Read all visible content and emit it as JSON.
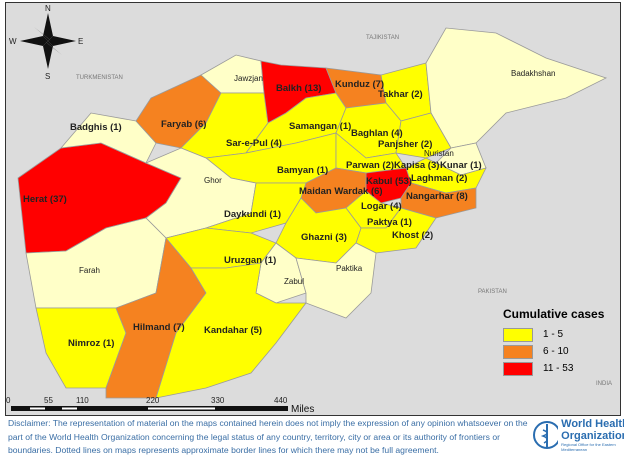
{
  "compass": {
    "n": "N",
    "s": "S",
    "e": "E",
    "w": "W"
  },
  "countries": {
    "tajikistan": "TAJIKISTAN",
    "turkmenistan": "TURKMENISTAN",
    "pakistan": "PAKISTAN",
    "india": "INDIA"
  },
  "legend": {
    "title": "Cumulative cases",
    "items": [
      {
        "label": "1 - 5",
        "color": "#ffff00"
      },
      {
        "label": "6 - 10",
        "color": "#f58220"
      },
      {
        "label": "11 - 53",
        "color": "#ff0000"
      }
    ]
  },
  "colors": {
    "none": "#ffffc8",
    "low": "#ffff00",
    "mid": "#f58220",
    "high": "#ff0000",
    "background": "#dcdcdc"
  },
  "provinces": {
    "herat": "Herat (37)",
    "badghis": "Badghis (1)",
    "faryab": "Faryab (6)",
    "jawzjan": "Jawzjan",
    "balkh": "Balkh (13)",
    "kunduz": "Kunduz (7)",
    "takhar": "Takhar (2)",
    "badakhshan": "Badakhshan",
    "samangan": "Samangan (1)",
    "sarepul": "Sar-e-Pul (4)",
    "baghlan": "Baghlan (4)",
    "panjsher": "Panjsher (2)",
    "nuristan": "Nuristan",
    "bamyan": "Bamyan (1)",
    "parwan": "Parwan (2)",
    "kapisa": "Kapisa (3)",
    "kunar": "Kunar (1)",
    "laghman": "Laghman (2)",
    "kabul": "Kabul (53)",
    "maidan": "Maidan Wardak (6)",
    "nangarhar": "Nangarhar (8)",
    "logar": "Logar (4)",
    "ghor": "Ghor",
    "daykundi": "Daykundi (1)",
    "paktya": "Paktya (1)",
    "khost": "Khost (2)",
    "ghazni": "Ghazni (3)",
    "farah": "Farah",
    "uruzgan": "Uruzgan (1)",
    "zabul": "Zabul",
    "paktika": "Paktika",
    "nimroz": "Nimroz (1)",
    "hilmand": "Hilmand (7)",
    "kandahar": "Kandahar (5)"
  },
  "scale": {
    "ticks": [
      "0",
      "55",
      "110",
      "220",
      "330",
      "440"
    ],
    "unit": "Miles"
  },
  "disclaimer": "Disclaimer: The representation of material on the maps contained herein does not imply the expression of any opinion whatsoever on the part of the World Health Organization concerning the legal status of any country, territory, city or area or its authority of frontiers or boundaries. Dotted lines on maps represents approximate border lines for which there may not be full agreement.",
  "logo": {
    "line1": "World Health",
    "line2": "Organization",
    "sub": "Regional Office for the Eastern Mediterranean"
  }
}
